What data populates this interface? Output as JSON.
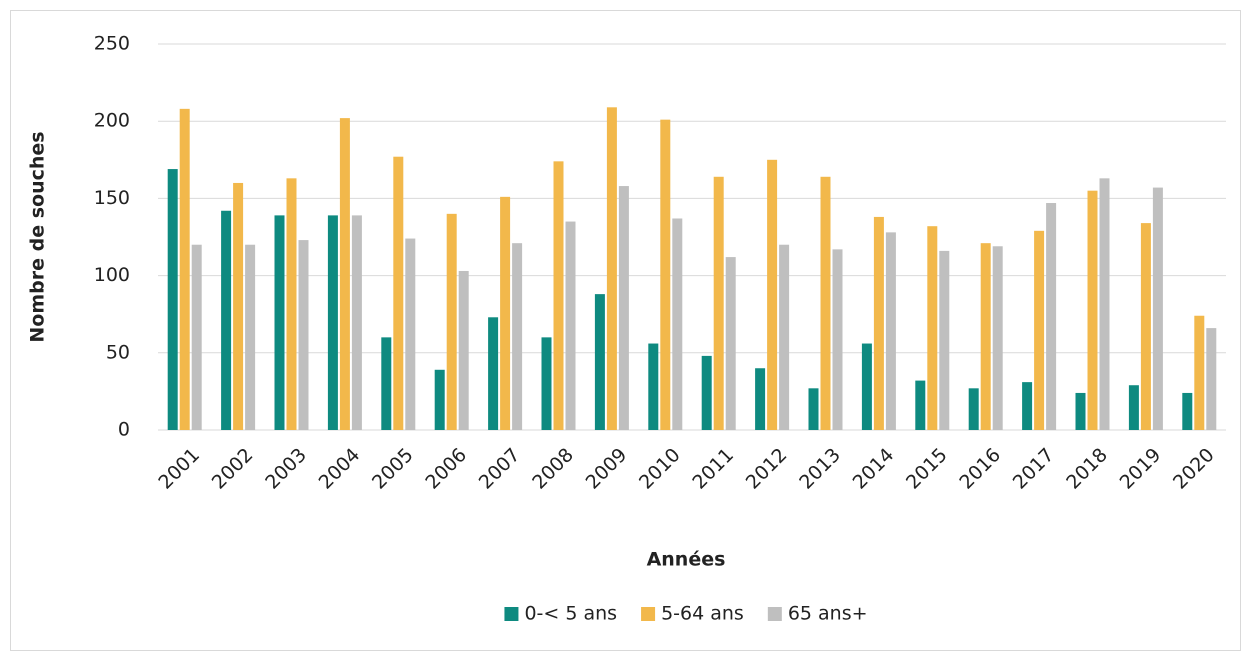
{
  "chart_data": {
    "type": "bar",
    "x_label": "Années",
    "y_label": "Nombre de souches",
    "categories": [
      "2001",
      "2002",
      "2003",
      "2004",
      "2005",
      "2006",
      "2007",
      "2008",
      "2009",
      "2010",
      "2011",
      "2012",
      "2013",
      "2014",
      "2015",
      "2016",
      "2017",
      "2018",
      "2019",
      "2020"
    ],
    "series": [
      {
        "name": "0-< 5 ans",
        "color": "#0e8a80",
        "values": [
          169,
          142,
          139,
          139,
          60,
          39,
          73,
          60,
          88,
          56,
          48,
          40,
          27,
          56,
          32,
          27,
          31,
          24,
          29,
          24
        ]
      },
      {
        "name": "5-64 ans",
        "color": "#f2b84b",
        "values": [
          208,
          160,
          163,
          202,
          177,
          140,
          151,
          174,
          209,
          201,
          164,
          175,
          164,
          138,
          132,
          121,
          129,
          155,
          134,
          74
        ]
      },
      {
        "name": "65 ans+",
        "color": "#bfbfbf",
        "values": [
          120,
          120,
          123,
          139,
          124,
          103,
          121,
          135,
          158,
          137,
          112,
          120,
          117,
          128,
          116,
          119,
          147,
          163,
          157,
          66
        ]
      }
    ],
    "ylim": [
      0,
      250
    ],
    "yticks": [
      0,
      50,
      100,
      150,
      200,
      250
    ],
    "grid": true,
    "legend": "bottom"
  }
}
